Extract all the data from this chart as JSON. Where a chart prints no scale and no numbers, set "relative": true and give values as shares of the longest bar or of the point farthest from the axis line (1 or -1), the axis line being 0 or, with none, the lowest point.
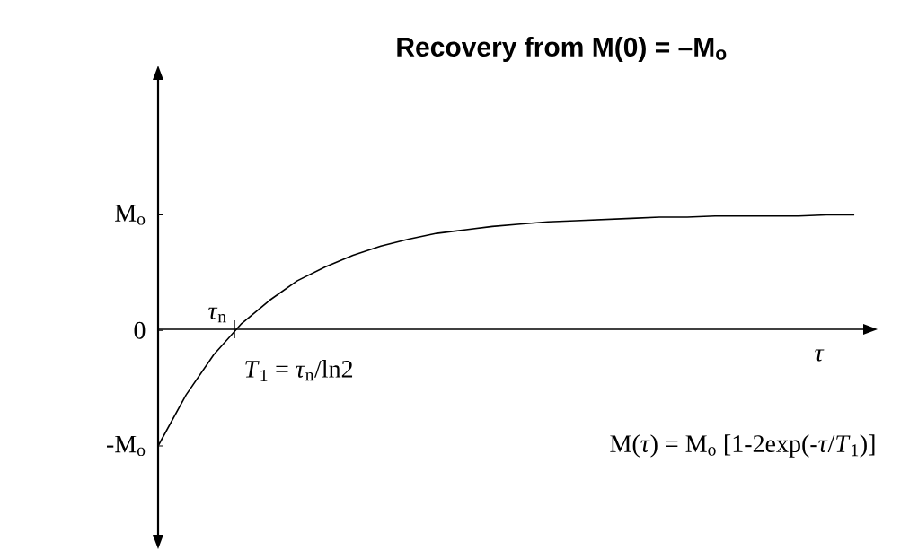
{
  "chart_data": {
    "type": "line",
    "title": "Recovery from M(0) = –M$_{o}$",
    "xlabel": "*τ*",
    "relative": true,
    "categories": [
      null,
      null,
      null,
      null,
      null,
      null,
      null,
      null,
      null,
      null,
      null,
      null,
      null,
      null,
      null,
      null,
      null,
      null,
      null,
      null,
      null,
      null,
      null,
      null,
      null,
      null
    ],
    "values": [
      -1,
      -0.56,
      -0.21,
      0.06,
      0.26,
      0.43,
      0.55,
      0.65,
      0.73,
      0.79,
      0.84,
      0.87,
      0.9,
      0.92,
      0.94,
      0.95,
      0.96,
      0.97,
      0.98,
      0.98,
      0.99,
      0.99,
      0.99,
      0.99,
      1,
      1
    ],
    "color": "#000000",
    "annotations": [
      "M$_{o}$",
      "0",
      "-M$_{o}$",
      "*τ*$_{n}$",
      "*T*$_{1}$ = *τ*$_{n}$/ln2",
      "M(*τ*) = M$_{o}$ [1-2exp(-*τ*/*T*$_{1}$)]"
    ]
  }
}
